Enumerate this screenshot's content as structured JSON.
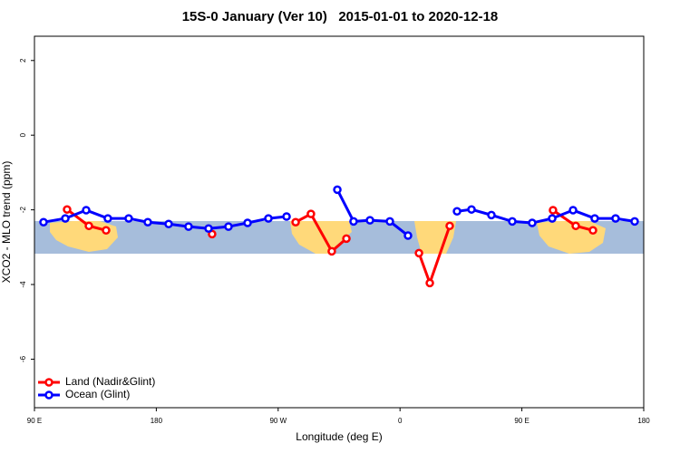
{
  "chart_data": {
    "type": "line",
    "title": "15S-0 January (Ver 10)   2015-01-01 to 2020-12-18",
    "x_label": "Longitude (deg E)",
    "y_label": "XCO2 - MLO trend (ppm)",
    "xlim": [
      90,
      540
    ],
    "ylim": [
      -7.3,
      2.65
    ],
    "xticks": [
      {
        "value": 90,
        "label": "90 E"
      },
      180,
      {
        "value": 270,
        "label": "90 W"
      },
      {
        "value": 360,
        "label": "0"
      },
      {
        "value": 450,
        "label": "90 E"
      },
      {
        "value": 540,
        "label": "180"
      }
    ],
    "yticks": [
      -6,
      -4,
      -2,
      0,
      2
    ],
    "legend": "bottom-left",
    "series": [
      {
        "name": "Land (Nadir&Glint)",
        "color": "#ff0000",
        "x": [
          114.1,
          130.2,
          142.9,
          null,
          221.2,
          null,
          282.9,
          294.2,
          309.6,
          320.4,
          null,
          374.0,
          382.0,
          396.7,
          null,
          473.0,
          489.8,
          502.5
        ],
        "values": [
          -1.99,
          -2.43,
          -2.55,
          null,
          -2.65,
          null,
          -2.33,
          -2.11,
          -3.11,
          -2.77,
          null,
          -3.16,
          -3.96,
          -2.43,
          null,
          -2.01,
          -2.43,
          -2.55
        ]
      },
      {
        "name": "Ocean (Glint)",
        "color": "#0000ff",
        "x": [
          96.7,
          112.8,
          128.2,
          144.2,
          159.6,
          173.7,
          189.1,
          203.8,
          218.6,
          233.3,
          247.4,
          262.8,
          276.2,
          null,
          313.7,
          325.7,
          337.8,
          352.5,
          365.9,
          null,
          402.1,
          412.8,
          427.5,
          442.9,
          457.6,
          472.4,
          487.8,
          503.8,
          519.2,
          533.3
        ],
        "values": [
          -2.33,
          -2.23,
          -2.01,
          -2.23,
          -2.23,
          -2.33,
          -2.38,
          -2.45,
          -2.5,
          -2.45,
          -2.35,
          -2.23,
          -2.18,
          null,
          -1.46,
          -2.31,
          -2.28,
          -2.31,
          -2.69,
          null,
          -2.04,
          -1.99,
          -2.14,
          -2.31,
          -2.35,
          -2.23,
          -2.01,
          -2.23,
          -2.23,
          -2.31
        ]
      }
    ]
  }
}
